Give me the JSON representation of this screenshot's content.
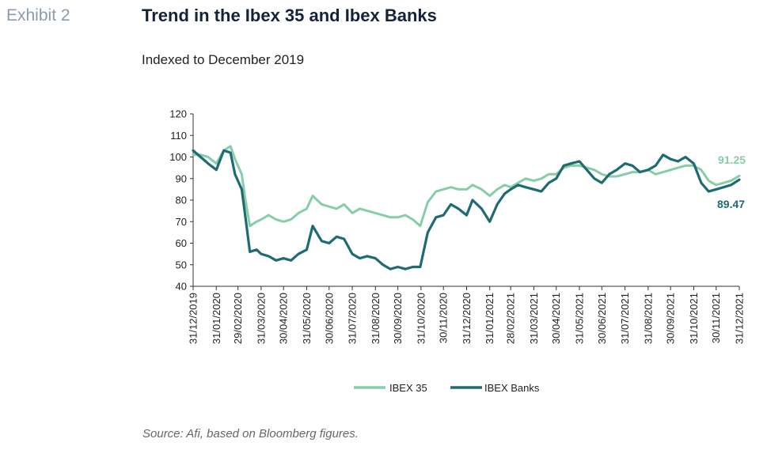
{
  "header": {
    "exhibit": "Exhibit 2",
    "title": "Trend in the Ibex 35 and Ibex Banks",
    "subtitle": "Indexed to December 2019"
  },
  "footer": {
    "source": "Source: Afi, based on Bloomberg figures."
  },
  "chart_data": {
    "type": "line",
    "title": "Trend in the Ibex 35 and Ibex Banks",
    "subtitle": "Indexed to December 2019",
    "xlabel": "",
    "ylabel": "",
    "ylim": [
      40,
      120
    ],
    "yticks": [
      40,
      50,
      60,
      70,
      80,
      90,
      100,
      110,
      120
    ],
    "xlim": [
      "2019-12-31",
      "2021-12-31"
    ],
    "xticks": [
      "31/12/2019",
      "31/01/2020",
      "29/02/2020",
      "31/03/2020",
      "30/04/2020",
      "31/05/2020",
      "30/06/2020",
      "31/07/2020",
      "31/08/2020",
      "30/09/2020",
      "31/10/2020",
      "30/11/2020",
      "31/12/2020",
      "31/01/2021",
      "28/02/2021",
      "31/03/2021",
      "30/04/2021",
      "31/05/2021",
      "30/06/2021",
      "31/07/2021",
      "31/08/2021",
      "30/09/2021",
      "31/10/2021",
      "30/11/2021",
      "31/12/2021"
    ],
    "grid": false,
    "legend": "bottom",
    "series": [
      {
        "name": "IBEX 35",
        "color": "#86cda8",
        "end_label": "91.25",
        "points": [
          [
            "2019-12-31",
            101
          ],
          [
            "2020-01-10",
            101
          ],
          [
            "2020-01-20",
            100
          ],
          [
            "2020-01-31",
            97
          ],
          [
            "2020-02-10",
            103
          ],
          [
            "2020-02-19",
            105
          ],
          [
            "2020-02-25",
            99
          ],
          [
            "2020-03-05",
            92
          ],
          [
            "2020-03-10",
            80
          ],
          [
            "2020-03-16",
            68
          ],
          [
            "2020-03-25",
            70
          ],
          [
            "2020-03-31",
            71
          ],
          [
            "2020-04-10",
            73
          ],
          [
            "2020-04-20",
            71
          ],
          [
            "2020-04-30",
            70
          ],
          [
            "2020-05-10",
            71
          ],
          [
            "2020-05-20",
            74
          ],
          [
            "2020-05-31",
            76
          ],
          [
            "2020-06-08",
            82
          ],
          [
            "2020-06-20",
            78
          ],
          [
            "2020-06-30",
            77
          ],
          [
            "2020-07-10",
            76
          ],
          [
            "2020-07-20",
            78
          ],
          [
            "2020-07-31",
            74
          ],
          [
            "2020-08-10",
            76
          ],
          [
            "2020-08-20",
            75
          ],
          [
            "2020-08-31",
            74
          ],
          [
            "2020-09-10",
            73
          ],
          [
            "2020-09-20",
            72
          ],
          [
            "2020-09-30",
            72
          ],
          [
            "2020-10-10",
            73
          ],
          [
            "2020-10-20",
            71
          ],
          [
            "2020-10-30",
            68
          ],
          [
            "2020-11-09",
            79
          ],
          [
            "2020-11-20",
            84
          ],
          [
            "2020-11-30",
            85
          ],
          [
            "2020-12-10",
            86
          ],
          [
            "2020-12-20",
            85
          ],
          [
            "2020-12-31",
            85
          ],
          [
            "2021-01-08",
            87
          ],
          [
            "2021-01-20",
            85
          ],
          [
            "2021-01-31",
            82
          ],
          [
            "2021-02-10",
            85
          ],
          [
            "2021-02-20",
            87
          ],
          [
            "2021-02-28",
            86
          ],
          [
            "2021-03-10",
            88
          ],
          [
            "2021-03-20",
            90
          ],
          [
            "2021-03-31",
            89
          ],
          [
            "2021-04-10",
            90
          ],
          [
            "2021-04-20",
            92
          ],
          [
            "2021-04-30",
            92
          ],
          [
            "2021-05-10",
            95
          ],
          [
            "2021-05-20",
            96
          ],
          [
            "2021-05-31",
            96
          ],
          [
            "2021-06-10",
            95
          ],
          [
            "2021-06-20",
            94
          ],
          [
            "2021-06-30",
            92
          ],
          [
            "2021-07-10",
            91
          ],
          [
            "2021-07-20",
            91
          ],
          [
            "2021-07-31",
            92
          ],
          [
            "2021-08-10",
            93
          ],
          [
            "2021-08-20",
            93
          ],
          [
            "2021-08-31",
            94
          ],
          [
            "2021-09-10",
            92
          ],
          [
            "2021-09-20",
            93
          ],
          [
            "2021-09-30",
            94
          ],
          [
            "2021-10-10",
            95
          ],
          [
            "2021-10-20",
            96
          ],
          [
            "2021-10-31",
            96
          ],
          [
            "2021-11-10",
            94
          ],
          [
            "2021-11-20",
            89
          ],
          [
            "2021-11-30",
            87
          ],
          [
            "2021-12-10",
            88
          ],
          [
            "2021-12-20",
            89
          ],
          [
            "2021-12-31",
            91.25
          ]
        ]
      },
      {
        "name": "IBEX Banks",
        "color": "#1f6b73",
        "end_label": "89.47",
        "points": [
          [
            "2019-12-31",
            103
          ],
          [
            "2020-01-10",
            100
          ],
          [
            "2020-01-20",
            97
          ],
          [
            "2020-01-31",
            94
          ],
          [
            "2020-02-10",
            103
          ],
          [
            "2020-02-19",
            102
          ],
          [
            "2020-02-25",
            92
          ],
          [
            "2020-03-05",
            85
          ],
          [
            "2020-03-10",
            72
          ],
          [
            "2020-03-16",
            56
          ],
          [
            "2020-03-25",
            57
          ],
          [
            "2020-03-31",
            55
          ],
          [
            "2020-04-10",
            54
          ],
          [
            "2020-04-20",
            52
          ],
          [
            "2020-04-30",
            53
          ],
          [
            "2020-05-10",
            52
          ],
          [
            "2020-05-20",
            55
          ],
          [
            "2020-05-31",
            57
          ],
          [
            "2020-06-08",
            68
          ],
          [
            "2020-06-20",
            61
          ],
          [
            "2020-06-30",
            60
          ],
          [
            "2020-07-10",
            63
          ],
          [
            "2020-07-20",
            62
          ],
          [
            "2020-07-31",
            55
          ],
          [
            "2020-08-10",
            53
          ],
          [
            "2020-08-20",
            54
          ],
          [
            "2020-08-31",
            53
          ],
          [
            "2020-09-10",
            50
          ],
          [
            "2020-09-20",
            48
          ],
          [
            "2020-09-30",
            49
          ],
          [
            "2020-10-10",
            48
          ],
          [
            "2020-10-20",
            49
          ],
          [
            "2020-10-30",
            49
          ],
          [
            "2020-11-09",
            65
          ],
          [
            "2020-11-20",
            72
          ],
          [
            "2020-11-30",
            73
          ],
          [
            "2020-12-10",
            78
          ],
          [
            "2020-12-20",
            76
          ],
          [
            "2020-12-31",
            73
          ],
          [
            "2021-01-08",
            80
          ],
          [
            "2021-01-20",
            76
          ],
          [
            "2021-01-31",
            70
          ],
          [
            "2021-02-10",
            78
          ],
          [
            "2021-02-20",
            83
          ],
          [
            "2021-02-28",
            85
          ],
          [
            "2021-03-10",
            87
          ],
          [
            "2021-03-20",
            86
          ],
          [
            "2021-03-31",
            85
          ],
          [
            "2021-04-10",
            84
          ],
          [
            "2021-04-20",
            88
          ],
          [
            "2021-04-30",
            90
          ],
          [
            "2021-05-10",
            96
          ],
          [
            "2021-05-20",
            97
          ],
          [
            "2021-05-31",
            98
          ],
          [
            "2021-06-10",
            94
          ],
          [
            "2021-06-20",
            90
          ],
          [
            "2021-06-30",
            88
          ],
          [
            "2021-07-10",
            92
          ],
          [
            "2021-07-20",
            94
          ],
          [
            "2021-07-31",
            97
          ],
          [
            "2021-08-10",
            96
          ],
          [
            "2021-08-20",
            93
          ],
          [
            "2021-08-31",
            94
          ],
          [
            "2021-09-10",
            96
          ],
          [
            "2021-09-20",
            101
          ],
          [
            "2021-09-30",
            99
          ],
          [
            "2021-10-10",
            98
          ],
          [
            "2021-10-20",
            100
          ],
          [
            "2021-10-31",
            97
          ],
          [
            "2021-11-10",
            88
          ],
          [
            "2021-11-20",
            84
          ],
          [
            "2021-11-30",
            85
          ],
          [
            "2021-12-10",
            86
          ],
          [
            "2021-12-20",
            87
          ],
          [
            "2021-12-31",
            89.47
          ]
        ]
      }
    ]
  }
}
